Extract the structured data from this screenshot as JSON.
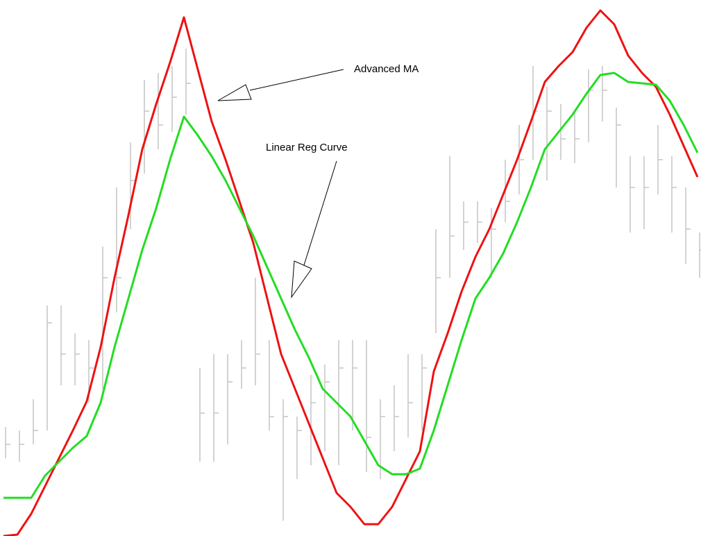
{
  "chart_data": {
    "type": "ohlc-line",
    "ylim": [
      0,
      772
    ],
    "bars": {
      "color": "#c4c4c4",
      "high": [
        157,
        152,
        197,
        332,
        332,
        292,
        282,
        417,
        502,
        567,
        657,
        667,
        677,
        702,
        242,
        262,
        262,
        282,
        372,
        282,
        197,
        172,
        232,
        247,
        282,
        282,
        282,
        197,
        217,
        262,
        262,
        442,
        547,
        482,
        482,
        472,
        542,
        592,
        677,
        647,
        622,
        612,
        672,
        677,
        617,
        547,
        547,
        592,
        547,
        502,
        437
      ],
      "low": [
        112,
        107,
        132,
        152,
        217,
        217,
        192,
        212,
        322,
        442,
        522,
        557,
        582,
        607,
        107,
        107,
        132,
        212,
        217,
        152,
        22,
        82,
        102,
        122,
        102,
        152,
        92,
        82,
        122,
        142,
        152,
        292,
        372,
        412,
        422,
        372,
        452,
        492,
        542,
        512,
        542,
        537,
        567,
        597,
        502,
        437,
        442,
        492,
        437,
        392,
        372
      ],
      "close": [
        132,
        132,
        152,
        307,
        262,
        262,
        242,
        372,
        372,
        512,
        612,
        592,
        632,
        652,
        177,
        177,
        222,
        242,
        262,
        172,
        172,
        152,
        192,
        222,
        242,
        242,
        142,
        172,
        172,
        192,
        242,
        372,
        432,
        452,
        452,
        442,
        482,
        542,
        612,
        612,
        572,
        572,
        642,
        642,
        592,
        502,
        502,
        542,
        502,
        442,
        412
      ]
    },
    "series": [
      {
        "color": "#ee1111",
        "values": [
          0,
          2,
          32,
          72,
          112,
          152,
          194,
          272,
          372,
          462,
          557,
          622,
          682,
          747,
          672,
          597,
          542,
          482,
          422,
          342,
          262,
          212,
          162,
          112,
          62,
          42,
          17,
          17,
          42,
          82,
          122,
          237,
          292,
          352,
          402,
          442,
          492,
          542,
          597,
          654,
          677,
          697,
          732,
          757,
          737,
          692,
          667,
          647,
          607,
          562,
          517
        ]
      },
      {
        "color": "#22dd22",
        "values": [
          55,
          55,
          55,
          87,
          107,
          127,
          144,
          192,
          272,
          342,
          412,
          472,
          542,
          604,
          577,
          547,
          512,
          472,
          432,
          387,
          342,
          297,
          257,
          212,
          192,
          172,
          137,
          102,
          89,
          89,
          97,
          152,
          217,
          282,
          342,
          372,
          407,
          452,
          502,
          557,
          582,
          607,
          637,
          664,
          667,
          654,
          652,
          650,
          627,
          592,
          552
        ]
      }
    ],
    "annotations": [
      "Advanced MA",
      "Linear Reg Curve"
    ]
  }
}
